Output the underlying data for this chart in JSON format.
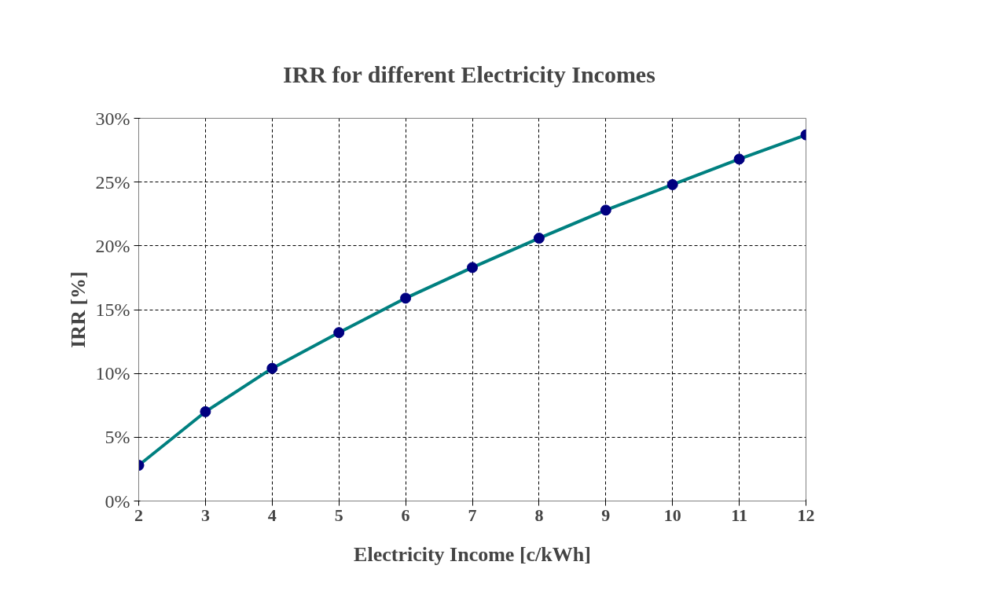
{
  "chart_data": {
    "type": "line",
    "title": "IRR  for different Electricity Incomes",
    "xlabel": "Electricity Income [c/kWh]",
    "ylabel": "IRR [%]",
    "x": [
      2,
      3,
      4,
      5,
      6,
      7,
      8,
      9,
      10,
      11,
      12
    ],
    "series": [
      {
        "color": "#008080",
        "marker": "none",
        "values": [
          2.8,
          7.0,
          10.4,
          13.2,
          15.9,
          18.3,
          20.6,
          22.8,
          24.8,
          26.8,
          28.7
        ]
      },
      {
        "type": "scatter",
        "color": "#000080",
        "marker": "circle",
        "values": [
          2.8,
          7.0,
          10.4,
          13.2,
          15.9,
          18.3,
          20.6,
          22.8,
          24.8,
          26.8,
          28.7
        ]
      }
    ],
    "xlim": [
      2,
      12
    ],
    "xticks": [
      2,
      3,
      4,
      5,
      6,
      7,
      8,
      9,
      10,
      11,
      12
    ],
    "ylim": [
      0,
      30
    ],
    "yticks": [
      {
        "value": 0,
        "label": "0%"
      },
      {
        "value": 5,
        "label": "5%"
      },
      {
        "value": 10,
        "label": "10%"
      },
      {
        "value": 15,
        "label": "15%"
      },
      {
        "value": 20,
        "label": "20%"
      },
      {
        "value": 25,
        "label": "25%"
      },
      {
        "value": 30,
        "label": "30%"
      }
    ],
    "grid": true,
    "line_style": "solid"
  }
}
